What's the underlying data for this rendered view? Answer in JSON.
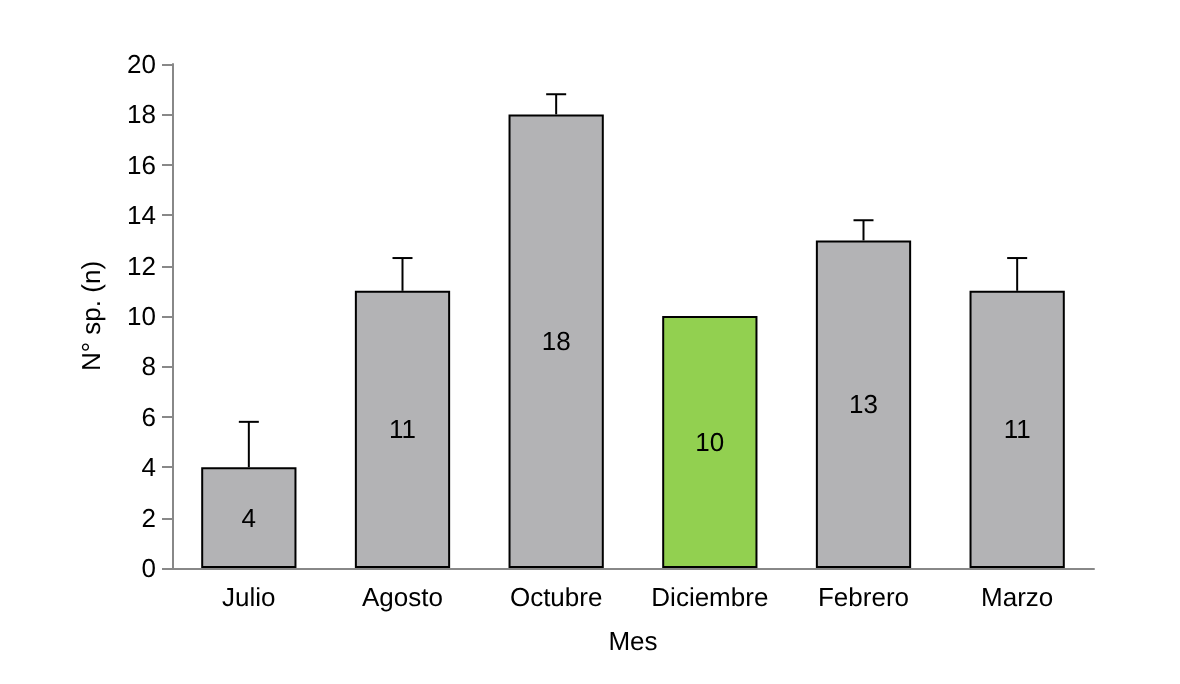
{
  "chart_data": {
    "type": "bar",
    "xlabel": "Mes",
    "ylabel": "N° sp. (n)",
    "categories": [
      "Julio",
      "Agosto",
      "Octubre",
      "Diciembre",
      "Febrero",
      "Marzo"
    ],
    "values": [
      4,
      11,
      18,
      10,
      13,
      11
    ],
    "colors": [
      "#b3b3b5",
      "#b3b3b5",
      "#b3b3b5",
      "#92d050",
      "#b3b3b5",
      "#b3b3b5"
    ],
    "errors": [
      [
        4,
        5.8
      ],
      [
        11,
        12.3
      ],
      [
        18,
        18.8
      ],
      null,
      [
        13,
        13.8
      ],
      [
        11,
        12.3
      ]
    ],
    "ylim": [
      0,
      20
    ],
    "yticks": [
      0,
      2,
      4,
      6,
      8,
      10,
      12,
      14,
      16,
      18,
      20
    ],
    "data_labels": true,
    "grid": false
  }
}
